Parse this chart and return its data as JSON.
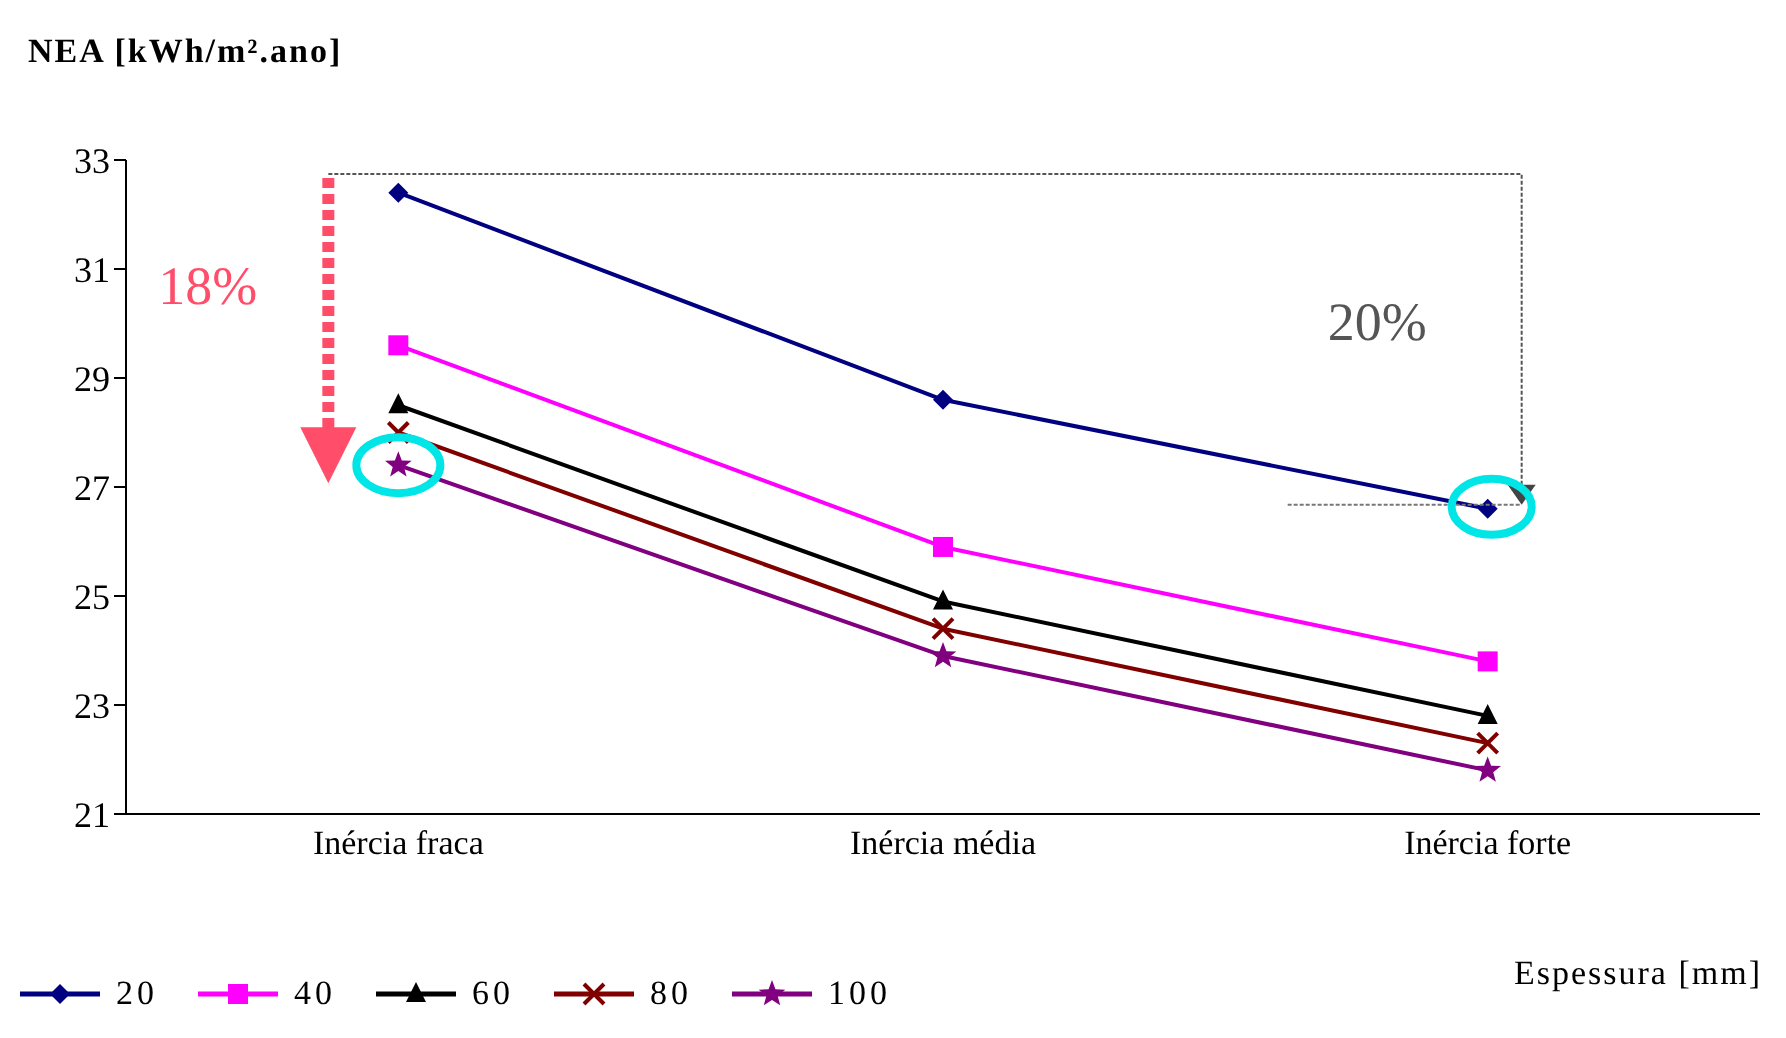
{
  "chart_data": {
    "type": "line",
    "ylabel": "NEA [kWh/m².ano]",
    "legend_title": "Espessura [mm]",
    "categories": [
      "Inércia fraca",
      "Inércia média",
      "Inércia forte"
    ],
    "series": [
      {
        "name": "20",
        "color": "#000080",
        "marker": "diamond",
        "values": [
          32.4,
          28.6,
          26.6
        ]
      },
      {
        "name": "40",
        "color": "#ff00ff",
        "marker": "square",
        "values": [
          29.6,
          25.9,
          23.8
        ]
      },
      {
        "name": "60",
        "color": "#000000",
        "marker": "triangle",
        "values": [
          28.5,
          24.9,
          22.8
        ]
      },
      {
        "name": "80",
        "color": "#800000",
        "marker": "cross",
        "values": [
          28.0,
          24.4,
          22.3
        ]
      },
      {
        "name": "100",
        "color": "#800080",
        "marker": "star",
        "values": [
          27.4,
          23.9,
          21.8
        ]
      }
    ],
    "ylim": [
      21,
      33
    ],
    "yticks": [
      21,
      23,
      25,
      27,
      29,
      31,
      33
    ],
    "grid": false,
    "legend": "bottom",
    "annotations": [
      "18%",
      "20%"
    ]
  }
}
